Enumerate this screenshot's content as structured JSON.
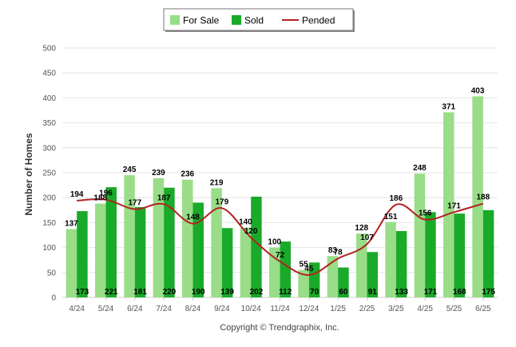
{
  "chart_data": {
    "type": "bar",
    "ylabel": "Number of Homes",
    "ylim": [
      0,
      500
    ],
    "yticks": [
      "0",
      "50",
      "100",
      "150",
      "200",
      "250",
      "300",
      "350",
      "400",
      "450",
      "500"
    ],
    "categories": [
      "4/24",
      "5/24",
      "6/24",
      "7/24",
      "8/24",
      "9/24",
      "10/24",
      "11/24",
      "12/24",
      "1/25",
      "2/25",
      "3/25",
      "4/25",
      "5/25",
      "6/25"
    ],
    "series": [
      {
        "name": "For Sale",
        "type": "bar",
        "color": "#99dd88",
        "values": [
          137,
          188,
          245,
          239,
          236,
          219,
          140,
          100,
          55,
          83,
          128,
          151,
          248,
          371,
          403
        ]
      },
      {
        "name": "Sold",
        "type": "bar",
        "color": "#1aaa2a",
        "values": [
          173,
          221,
          181,
          220,
          190,
          139,
          202,
          112,
          70,
          60,
          91,
          133,
          171,
          168,
          175
        ]
      },
      {
        "name": "Pended",
        "type": "line",
        "color": "#b22222",
        "values": [
          194,
          196,
          177,
          187,
          148,
          179,
          120,
          72,
          45,
          78,
          107,
          186,
          156,
          171,
          188
        ]
      }
    ],
    "legend": "top-center",
    "grid": true
  },
  "footer": {
    "copyright": "Copyright © Trendgraphix, Inc."
  }
}
